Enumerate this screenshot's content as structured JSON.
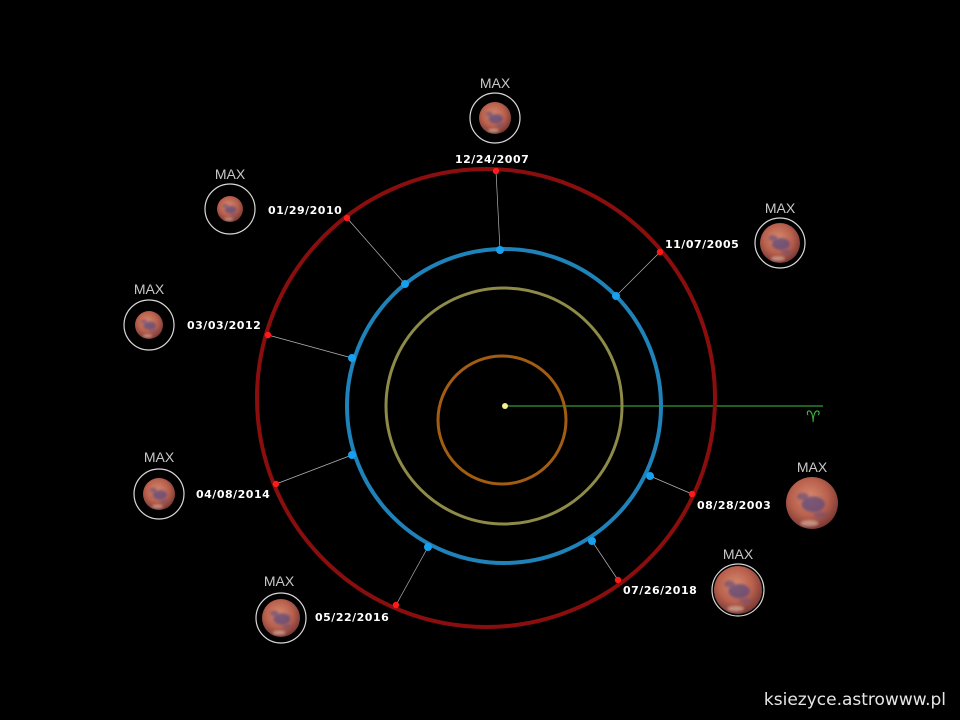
{
  "diagram": {
    "colors": {
      "background": "#000000",
      "mars_orbit": "#8a0e0e",
      "earth_orbit": "#1f82b8",
      "venus_orbit": "#8e8a48",
      "mercury_orbit": "#a35d12",
      "sun": "#f2f28a",
      "vernal_line": "#3fbf3f",
      "mars_point": "#ff1a1a",
      "earth_point": "#18a0f0",
      "connector": "#b4b4b4"
    },
    "vernal_symbol": "♈",
    "max_label": "MAX",
    "oppositions": [
      {
        "date": "12/24/2007",
        "label_side": "above"
      },
      {
        "date": "11/07/2005",
        "label_side": "right"
      },
      {
        "date": "01/29/2010",
        "label_side": "left"
      },
      {
        "date": "03/03/2012",
        "label_side": "left"
      },
      {
        "date": "04/08/2014",
        "label_side": "left"
      },
      {
        "date": "05/22/2016",
        "label_side": "left"
      },
      {
        "date": "07/26/2018",
        "label_side": "right"
      },
      {
        "date": "08/28/2003",
        "label_side": "right"
      }
    ]
  },
  "credit": "ksiezyce.astrowww.pl"
}
